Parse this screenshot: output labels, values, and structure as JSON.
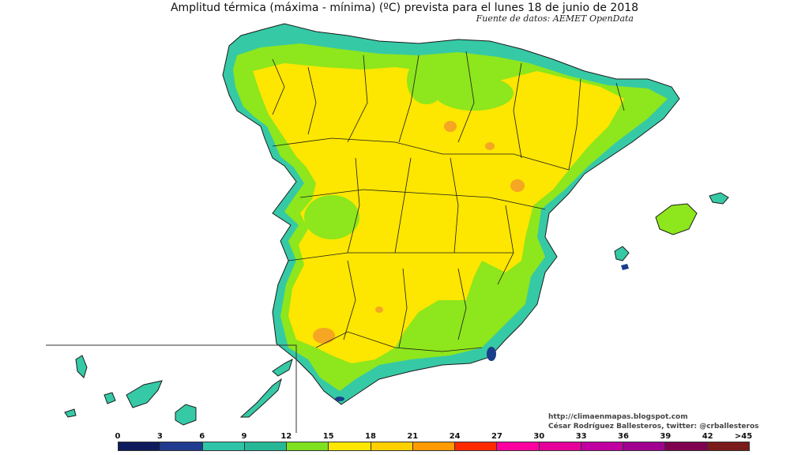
{
  "title": "Amplitud térmica (máxima - mínima) (ºC) prevista para el lunes 18 de junio de 2018",
  "source": "Fuente de datos: AEMET OpenData",
  "credits": {
    "url": "http://climaenmapas.blogspot.com",
    "author": "César Rodríguez Ballesteros, twitter: @crballesteros"
  },
  "legend": {
    "labels": [
      "0",
      "3",
      "6",
      "9",
      "12",
      "15",
      "18",
      "21",
      "24",
      "27",
      "30",
      "33",
      "36",
      "39",
      "42",
      ">45"
    ],
    "colors": [
      "#0d1a5c",
      "#1f3b8f",
      "#2fc4a8",
      "#26b896",
      "#7ee01f",
      "#ffe600",
      "#ffd000",
      "#ff9a00",
      "#ff2a00",
      "#ff00a0",
      "#e6009a",
      "#c000a0",
      "#a00090",
      "#80004f",
      "#7a1a1a"
    ]
  },
  "map_colors": {
    "coast": "#36c9a6",
    "green": "#8ee61c",
    "yellow": "#fde600",
    "orange": "#f5a623",
    "dark": "#1b3d8c",
    "border": "#1a1a1a"
  }
}
